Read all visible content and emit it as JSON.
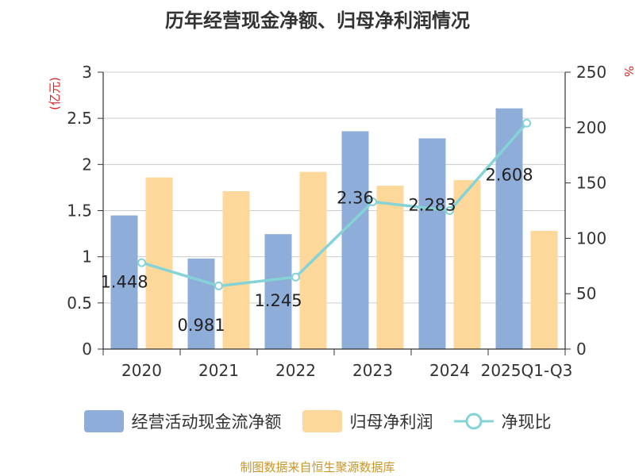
{
  "chart_data": {
    "type": "bar",
    "title": "历年经营现金净额、归母净利润情况",
    "categories": [
      "2020",
      "2021",
      "2022",
      "2023",
      "2024",
      "2025Q1-Q3"
    ],
    "series": [
      {
        "name": "经营活动现金流净额",
        "axis": "left",
        "type": "bar",
        "color": "#8eadd9",
        "values": [
          1.448,
          0.981,
          1.245,
          2.36,
          2.283,
          2.608
        ],
        "data_labels": [
          "1.448",
          "0.981",
          "1.245",
          "2.36",
          "2.283",
          "2.608"
        ]
      },
      {
        "name": "归母净利润",
        "axis": "left",
        "type": "bar",
        "color": "#fdd89a",
        "values": [
          1.86,
          1.71,
          1.92,
          1.77,
          1.83,
          1.28
        ]
      },
      {
        "name": "净现比",
        "axis": "right",
        "type": "line",
        "color": "#84d3d6",
        "values": [
          78,
          57,
          65,
          133,
          125,
          204
        ]
      }
    ],
    "y_left": {
      "label": "(亿元)",
      "ylim": [
        0,
        3
      ],
      "ticks": [
        "0",
        "0.5",
        "1",
        "1.5",
        "2",
        "2.5",
        "3"
      ]
    },
    "y_right": {
      "label": "%",
      "ylim": [
        0,
        250
      ],
      "ticks": [
        "0",
        "50",
        "100",
        "150",
        "200",
        "250"
      ]
    },
    "grid": true,
    "legend_position": "bottom"
  },
  "source": "制图数据来自恒生聚源数据库"
}
